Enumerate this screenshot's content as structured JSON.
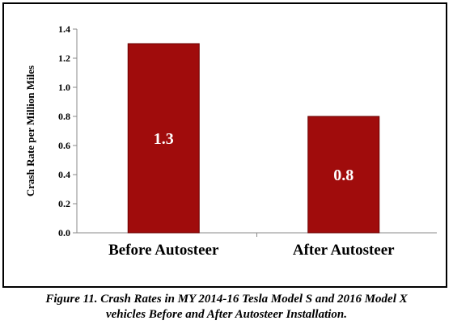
{
  "chart_data": {
    "type": "bar",
    "categories": [
      "Before Autosteer",
      "After Autosteer"
    ],
    "values": [
      1.3,
      0.8
    ],
    "data_labels": [
      "1.3",
      "0.8"
    ],
    "title": "",
    "xlabel": "",
    "ylabel": "Crash Rate per Million Miles",
    "ylim": [
      0,
      1.4
    ],
    "yticks": [
      "0.0",
      "0.2",
      "0.4",
      "0.6",
      "0.8",
      "1.0",
      "1.2",
      "1.4"
    ],
    "bar_color": "#a00c0c",
    "data_label_color": "#ffffff",
    "grid": false,
    "legend": "none"
  },
  "caption": {
    "line1": "Figure 11. Crash Rates in MY 2014-16 Tesla Model S and 2016 Model X",
    "line2": "vehicles Before and After Autosteer Installation."
  }
}
